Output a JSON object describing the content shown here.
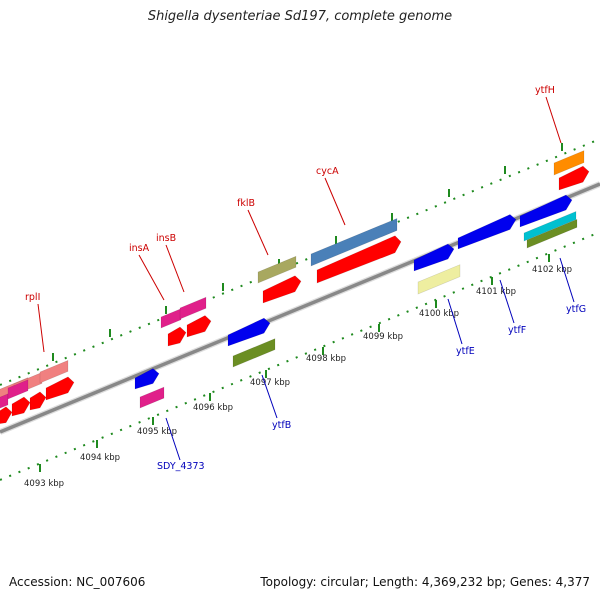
{
  "header": {
    "title": "Shigella dysenteriae Sd197, complete genome"
  },
  "footer": {
    "accession": "Accession: NC_007606",
    "stats": "Topology: circular; Length: 4,369,232 bp; Genes: 4,377"
  },
  "colors": {
    "backbone": "#888888",
    "tick": "#1f8a1f",
    "upper_label": "#cc0000",
    "lower_label": "#0000bb",
    "kbp_text": "#222222"
  },
  "scale": {
    "ticks": [
      {
        "label": "4093 kbp"
      },
      {
        "label": "4094 kbp"
      },
      {
        "label": "4095 kbp"
      },
      {
        "label": "4096 kbp"
      },
      {
        "label": "4097 kbp"
      },
      {
        "label": "4098 kbp"
      },
      {
        "label": "4099 kbp"
      },
      {
        "label": "4100 kbp"
      },
      {
        "label": "4101 kbp"
      },
      {
        "label": "4102 kbp"
      }
    ]
  },
  "labels": {
    "upper": [
      {
        "name": "rplI"
      },
      {
        "name": "insA"
      },
      {
        "name": "insB"
      },
      {
        "name": "fklB"
      },
      {
        "name": "cycA"
      },
      {
        "name": "ytfH"
      }
    ],
    "lower": [
      {
        "name": "SDY_4373"
      },
      {
        "name": "ytfB"
      },
      {
        "name": "ytfE"
      },
      {
        "name": "ytfF"
      },
      {
        "name": "ytfG"
      }
    ]
  },
  "features": [
    {
      "color": "#f08080"
    },
    {
      "color": "#f08080"
    },
    {
      "color": "#f08080"
    },
    {
      "color": "#e0208a"
    },
    {
      "color": "#e0208a"
    },
    {
      "color": "#e0208a"
    },
    {
      "color": "#e0208a"
    },
    {
      "color": "#e0208a"
    },
    {
      "color": "#a8a860"
    },
    {
      "color": "#4a80b8"
    },
    {
      "color": "#ff8c00"
    },
    {
      "color": "#eeeea0"
    },
    {
      "color": "#6b8e23"
    },
    {
      "color": "#6b8e23"
    },
    {
      "color": "#00c0d0"
    },
    {
      "color": "#0000ee"
    },
    {
      "color": "#0000ee"
    },
    {
      "color": "#0000ee"
    },
    {
      "color": "#0000ee"
    },
    {
      "color": "#0000ee"
    },
    {
      "color": "#ff0000"
    }
  ]
}
